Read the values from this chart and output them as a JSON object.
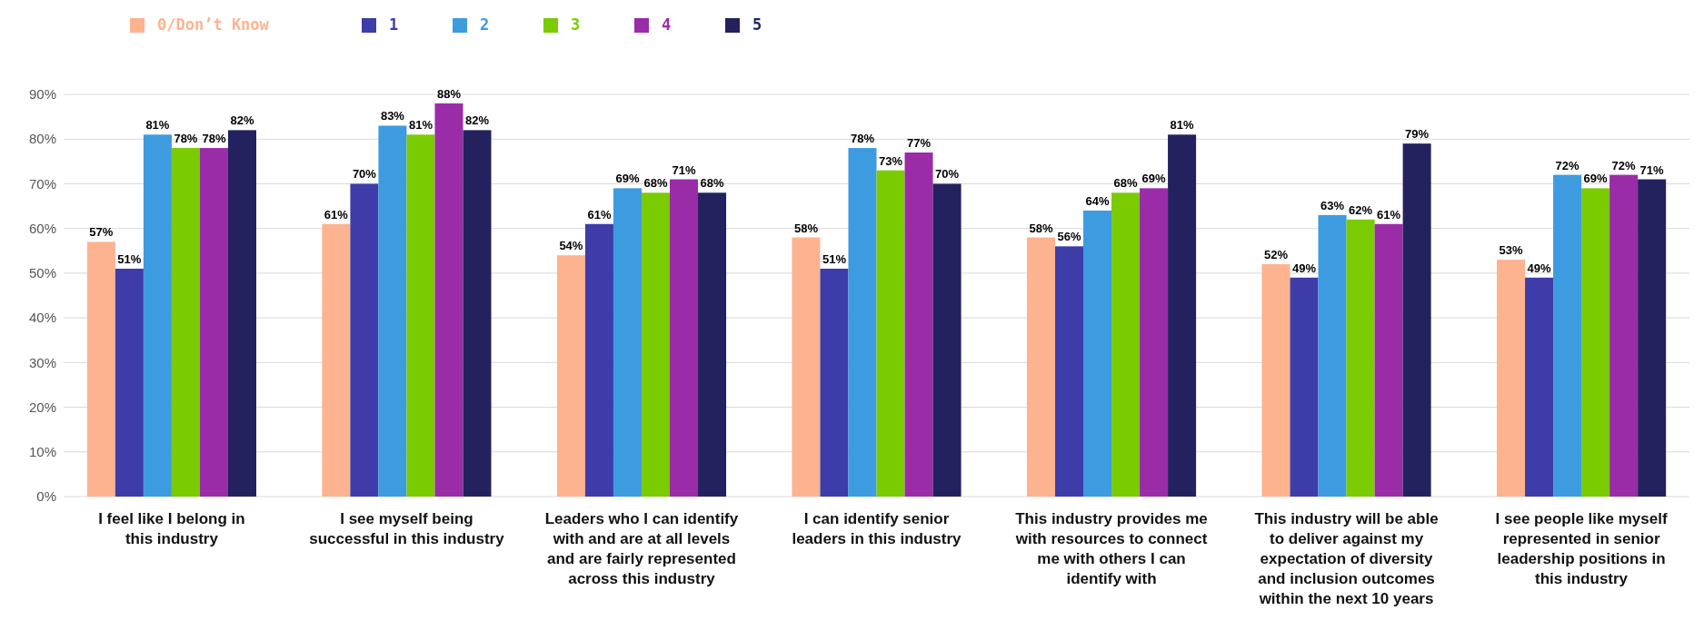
{
  "chart_data": {
    "type": "bar",
    "categories": [
      "I feel like I belong in this industry",
      "I see myself being successful in this industry",
      "Leaders who I can identify with and are at all levels and are fairly represented across this industry",
      "I can identify senior leaders in this industry",
      "This industry provides me with resources to connect me with others I can identify with",
      "This industry will be able to deliver against my expectation of diversity and inclusion outcomes within the next 10 years",
      "I see people like myself represented in senior leadership positions in this industry"
    ],
    "series": [
      {
        "name": "0/Don’t Know",
        "color": "#fdb38f",
        "values": [
          57,
          61,
          54,
          58,
          58,
          52,
          53
        ],
        "value_labels": [
          "57%",
          "61%",
          "54%",
          "58%",
          "58%",
          "52%",
          "53%"
        ]
      },
      {
        "name": "1",
        "color": "#3d3ca8",
        "values": [
          51,
          70,
          61,
          51,
          56,
          49,
          49
        ],
        "value_labels": [
          "51%",
          "70%",
          "61%",
          "51%",
          "56%",
          "49%",
          "49%"
        ]
      },
      {
        "name": "2",
        "color": "#3d9be0",
        "values": [
          81,
          83,
          69,
          78,
          64,
          63,
          72
        ],
        "value_labels": [
          "81%",
          "83%",
          "69%",
          "78%",
          "64%",
          "63%",
          "72%"
        ]
      },
      {
        "name": "3",
        "color": "#7acb00",
        "values": [
          78,
          81,
          68,
          73,
          68,
          62,
          69
        ],
        "value_labels": [
          "78%",
          "81%",
          "68%",
          "73%",
          "68%",
          "62%",
          "69%"
        ]
      },
      {
        "name": "4",
        "color": "#9a2ca8",
        "values": [
          78,
          88,
          71,
          77,
          69,
          61,
          72
        ],
        "value_labels": [
          "78%",
          "88%",
          "71%",
          "77%",
          "69%",
          "61%",
          "72%"
        ]
      },
      {
        "name": "5",
        "color": "#23225e",
        "values": [
          82,
          82,
          68,
          70,
          81,
          79,
          71
        ],
        "value_labels": [
          "82%",
          "82%",
          "68%",
          "70%",
          "81%",
          "79%",
          "71%"
        ]
      }
    ],
    "ylim": [
      0,
      90
    ],
    "yticks": [
      {
        "value": 0,
        "label": "0%"
      },
      {
        "value": 10,
        "label": "10%"
      },
      {
        "value": 20,
        "label": "20%"
      },
      {
        "value": 30,
        "label": "30%"
      },
      {
        "value": 40,
        "label": "40%"
      },
      {
        "value": 50,
        "label": "50%"
      },
      {
        "value": 60,
        "label": "60%"
      },
      {
        "value": 70,
        "label": "70%"
      },
      {
        "value": 80,
        "label": "80%"
      },
      {
        "value": 90,
        "label": "90%"
      }
    ],
    "grid": "y",
    "legend": "top left"
  }
}
